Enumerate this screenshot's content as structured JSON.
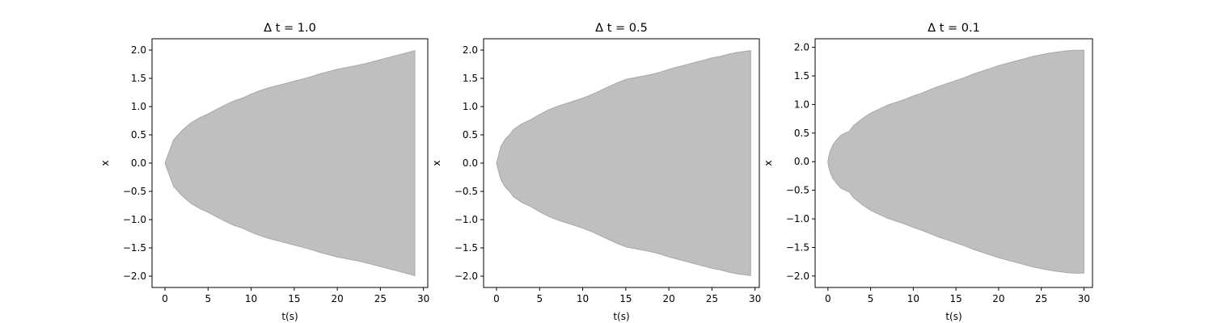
{
  "chart_data": [
    {
      "type": "area",
      "title": "Δ t = 1.0",
      "xlabel": "t(s)",
      "ylabel": "x",
      "xlim": [
        -1.5,
        30.5
      ],
      "ylim": [
        -2.2,
        2.2
      ],
      "xticks": [
        0,
        5,
        10,
        15,
        20,
        25,
        30
      ],
      "yticks": [
        2.0,
        1.5,
        1.0,
        0.5,
        0.0,
        -0.5,
        -1.0,
        -1.5,
        -2.0
      ],
      "grid": false,
      "x": [
        0,
        1,
        2,
        3,
        4,
        5,
        6,
        7,
        8,
        9,
        10,
        11,
        12,
        13,
        14,
        15,
        16,
        17,
        18,
        19,
        20,
        21,
        22,
        23,
        24,
        25,
        26,
        27,
        28,
        29
      ],
      "upper": [
        0,
        0.41,
        0.58,
        0.71,
        0.8,
        0.87,
        0.95,
        1.03,
        1.1,
        1.15,
        1.22,
        1.28,
        1.33,
        1.37,
        1.41,
        1.45,
        1.49,
        1.53,
        1.58,
        1.62,
        1.66,
        1.69,
        1.72,
        1.75,
        1.79,
        1.83,
        1.87,
        1.91,
        1.95,
        1.99
      ],
      "lower": [
        0,
        -0.41,
        -0.58,
        -0.71,
        -0.8,
        -0.87,
        -0.95,
        -1.03,
        -1.1,
        -1.15,
        -1.22,
        -1.28,
        -1.33,
        -1.37,
        -1.41,
        -1.45,
        -1.49,
        -1.53,
        -1.58,
        -1.62,
        -1.66,
        -1.69,
        -1.72,
        -1.75,
        -1.79,
        -1.83,
        -1.87,
        -1.91,
        -1.95,
        -1.99
      ]
    },
    {
      "type": "area",
      "title": "Δ t = 0.5",
      "xlabel": "t(s)",
      "ylabel": "x",
      "xlim": [
        -1.5,
        30.5
      ],
      "ylim": [
        -2.2,
        2.2
      ],
      "xticks": [
        0,
        5,
        10,
        15,
        20,
        25,
        30
      ],
      "yticks": [
        2.0,
        1.5,
        1.0,
        0.5,
        0.0,
        -0.5,
        -1.0,
        -1.5,
        -2.0
      ],
      "grid": false,
      "x": [
        0,
        0.5,
        1.0,
        1.5,
        2.0,
        3.0,
        4.0,
        5.0,
        6.0,
        7.0,
        8.0,
        9.0,
        10.0,
        11.0,
        12.0,
        13.0,
        14.0,
        15.0,
        16.0,
        17.0,
        18.0,
        19.0,
        20.0,
        21.0,
        22.0,
        23.0,
        24.0,
        25.0,
        26.0,
        27.0,
        28.0,
        29.5
      ],
      "upper": [
        0,
        0.29,
        0.42,
        0.5,
        0.6,
        0.7,
        0.77,
        0.86,
        0.94,
        1.0,
        1.05,
        1.1,
        1.15,
        1.21,
        1.28,
        1.35,
        1.42,
        1.48,
        1.51,
        1.54,
        1.57,
        1.61,
        1.66,
        1.7,
        1.74,
        1.78,
        1.82,
        1.86,
        1.89,
        1.93,
        1.96,
        1.99
      ],
      "lower": [
        0,
        -0.29,
        -0.42,
        -0.5,
        -0.6,
        -0.7,
        -0.77,
        -0.86,
        -0.94,
        -1.0,
        -1.05,
        -1.1,
        -1.15,
        -1.21,
        -1.28,
        -1.35,
        -1.42,
        -1.48,
        -1.51,
        -1.54,
        -1.57,
        -1.61,
        -1.66,
        -1.7,
        -1.74,
        -1.78,
        -1.82,
        -1.86,
        -1.89,
        -1.93,
        -1.96,
        -1.99
      ]
    },
    {
      "type": "area",
      "title": "Δ t = 0.1",
      "xlabel": "t(s)",
      "ylabel": "x",
      "xlim": [
        -1.5,
        31.0
      ],
      "ylim": [
        -2.2,
        2.15
      ],
      "xticks": [
        0,
        5,
        10,
        15,
        20,
        25,
        30
      ],
      "yticks": [
        2.0,
        1.5,
        1.0,
        0.5,
        0.0,
        -0.5,
        -1.0,
        -1.5,
        -2.0
      ],
      "grid": false,
      "x": [
        0,
        0.1,
        0.3,
        0.6,
        1.0,
        1.5,
        2.0,
        2.5,
        3.0,
        4.0,
        5.0,
        6.0,
        7.0,
        8.0,
        9.0,
        10.0,
        11.0,
        12.0,
        13.0,
        14.0,
        15.0,
        16.0,
        17.0,
        18.0,
        19.0,
        20.0,
        21.0,
        22.0,
        23.0,
        24.0,
        25.0,
        26.0,
        27.0,
        28.0,
        29.0,
        30.0
      ],
      "upper": [
        0,
        0.1,
        0.2,
        0.3,
        0.38,
        0.46,
        0.5,
        0.53,
        0.63,
        0.75,
        0.85,
        0.92,
        0.99,
        1.04,
        1.09,
        1.15,
        1.2,
        1.26,
        1.32,
        1.37,
        1.42,
        1.47,
        1.53,
        1.58,
        1.63,
        1.68,
        1.72,
        1.76,
        1.8,
        1.84,
        1.87,
        1.9,
        1.92,
        1.94,
        1.95,
        1.95
      ],
      "lower": [
        0,
        -0.1,
        -0.2,
        -0.3,
        -0.38,
        -0.46,
        -0.5,
        -0.53,
        -0.63,
        -0.75,
        -0.85,
        -0.92,
        -0.99,
        -1.04,
        -1.09,
        -1.15,
        -1.2,
        -1.26,
        -1.32,
        -1.37,
        -1.42,
        -1.47,
        -1.53,
        -1.58,
        -1.63,
        -1.68,
        -1.72,
        -1.76,
        -1.8,
        -1.84,
        -1.87,
        -1.9,
        -1.92,
        -1.94,
        -1.95,
        -1.95
      ]
    }
  ]
}
